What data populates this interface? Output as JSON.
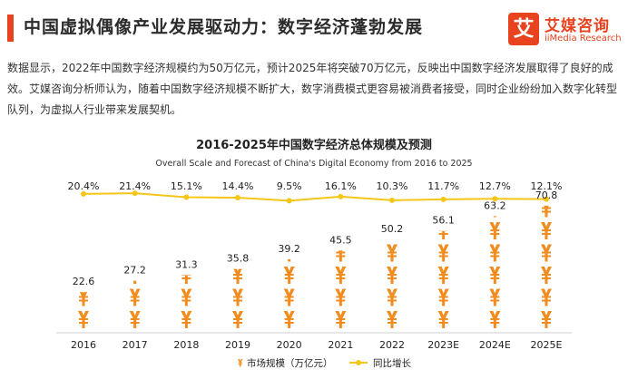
{
  "header": {
    "title": "中国虚拟偶像产业发展驱动力：数字经济蓬勃发展"
  },
  "logo": {
    "mark": "艾",
    "name_cn": "艾媒咨询",
    "name_en": "iiMedia Research"
  },
  "paragraph": "数据显示，2022年中国数字经济规模约为50万亿元，预计2025年将突破70万亿元，反映出中国数字经济发展取得了良好的成效。艾媒咨询分析师认为，随着中国数字经济规模不断扩大，数字消费模式更容易被消费者接受，同时企业纷纷加入数字化转型队列，为虚拟人行业带来发展契机。",
  "colors": {
    "accent": "#e8421e",
    "bars": "#f28c1e",
    "line": "#f5c518"
  },
  "chart_data": {
    "type": "bar",
    "title": "2016-2025年中国数字经济总体规模及预测",
    "subtitle": "Overall Scale and Forecast of China's Digital Economy from 2016 to 2025",
    "categories": [
      "2016",
      "2017",
      "2018",
      "2019",
      "2020",
      "2021",
      "2022",
      "2023E",
      "2024E",
      "2025E"
    ],
    "series": [
      {
        "name": "市场规模（万亿元）",
        "type": "pictorial-bar",
        "icon": "yen-icon",
        "values": [
          22.6,
          27.2,
          31.3,
          35.8,
          39.2,
          45.5,
          50.2,
          56.1,
          63.2,
          70.8
        ],
        "labels": [
          "22.6",
          "27.2",
          "31.3",
          "35.8",
          "39.2",
          "45.5",
          "50.2",
          "56.1",
          "63.2",
          "70.8"
        ]
      },
      {
        "name": "同比增长",
        "type": "line",
        "values": [
          20.4,
          21.4,
          15.1,
          14.4,
          9.5,
          16.1,
          10.3,
          11.7,
          12.7,
          12.1
        ],
        "labels": [
          "20.4%",
          "21.4%",
          "15.1%",
          "14.4%",
          "9.5%",
          "16.1%",
          "10.3%",
          "11.7%",
          "12.7%",
          "12.1%"
        ]
      }
    ],
    "legend_position": "bottom-center",
    "grid": false
  }
}
